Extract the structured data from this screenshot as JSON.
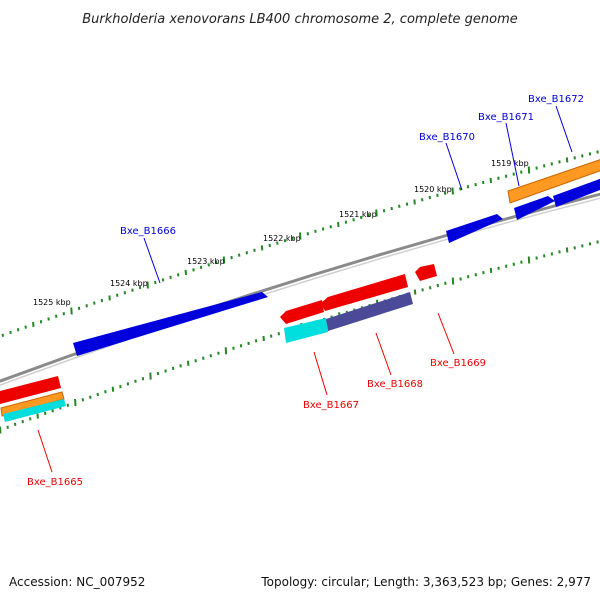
{
  "title": "Burkholderia xenovorans LB400 chromosome 2, complete genome",
  "accession": "Accession: NC_007952",
  "topology": "Topology: circular; Length: 3,363,523 bp; Genes: 2,977",
  "ruler_labels": [
    "1519 kbp",
    "1520 kbp",
    "1521 kbp",
    "1522 kbp",
    "1523 kbp",
    "1524 kbp",
    "1525 kbp"
  ],
  "genes_forward": [
    {
      "label": "Bxe_B1666",
      "color": "#0000dd"
    },
    {
      "label": "Bxe_B1670",
      "color": "#0000dd"
    },
    {
      "label": "Bxe_B1671",
      "color": "#0000dd"
    },
    {
      "label": "Bxe_B1672",
      "color": "#0000dd"
    }
  ],
  "genes_reverse": [
    {
      "label": "Bxe_B1665",
      "color": "#ee0000"
    },
    {
      "label": "Bxe_B1667",
      "color": "#ee0000"
    },
    {
      "label": "Bxe_B1668",
      "color": "#ee0000"
    },
    {
      "label": "Bxe_B1669",
      "color": "#ee0000"
    }
  ],
  "colors": {
    "forward_cds": "#0000dd",
    "reverse_cds": "#ee0000",
    "rrna_orange": "#ff9922",
    "feature_cyan": "#00dddd",
    "feature_purple": "#4a4a99",
    "backbone": "#8a8a8a",
    "ticks": "#228822"
  }
}
